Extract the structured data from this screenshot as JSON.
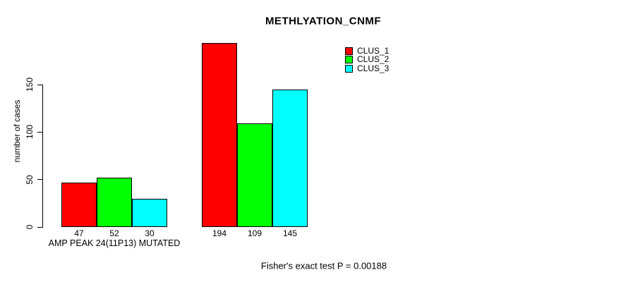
{
  "chart_data": {
    "type": "bar",
    "title": "METHLYATION_CNMF",
    "xlabel": "",
    "ylabel": "number of cases",
    "yticks": [
      0,
      50,
      100,
      150
    ],
    "ylim": [
      0,
      200
    ],
    "grid": false,
    "legend_position": "top-right",
    "categories": [
      "AMP PEAK 24(11P13) MUTATED",
      ""
    ],
    "series": [
      {
        "name": "CLUS_1",
        "color": "#ff0000",
        "values": [
          47,
          194
        ]
      },
      {
        "name": "CLUS_2",
        "color": "#00ff00",
        "values": [
          52,
          109
        ]
      },
      {
        "name": "CLUS_3",
        "color": "#00ffff",
        "values": [
          30,
          145
        ]
      }
    ],
    "bar_value_labels": [
      [
        "47",
        "52",
        "30"
      ],
      [
        "194",
        "109",
        "145"
      ]
    ],
    "annotation": "Fisher's exact test P = 0.00188"
  }
}
